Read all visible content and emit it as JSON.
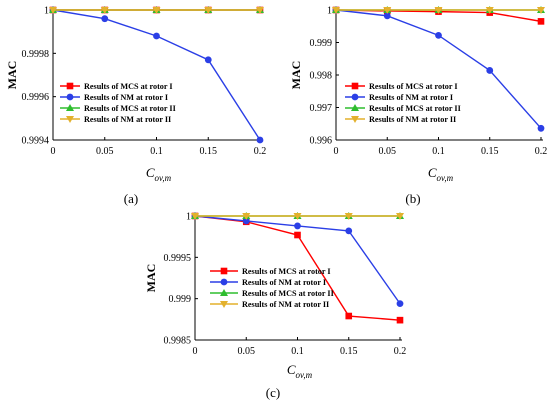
{
  "chart_data": [
    {
      "panel": "(a)",
      "type": "line",
      "ylabel": "MAC",
      "xlabel_main": "C",
      "xlabel_sub": "ov,m",
      "x": [
        0,
        0.05,
        0.1,
        0.15,
        0.2
      ],
      "x_ticks": [
        "0",
        "0.05",
        "0.1",
        "0.15",
        "0.2"
      ],
      "ylim": [
        0.9994,
        1.0
      ],
      "y_ticks": [
        {
          "value": 0.9994,
          "label": "0.9994"
        },
        {
          "value": 0.9996,
          "label": "0.9996"
        },
        {
          "value": 0.9998,
          "label": "0.9998"
        },
        {
          "value": 1.0,
          "label": "1"
        }
      ],
      "series": [
        {
          "name": "Results of MCS at rotor I",
          "color": "#ff0000",
          "marker": "square",
          "values": [
            1.0,
            1.0,
            1.0,
            1.0,
            1.0
          ]
        },
        {
          "name": "Results of NM at rotor I",
          "color": "#2b3fe6",
          "marker": "circle",
          "values": [
            1.0,
            0.99996,
            0.99988,
            0.99977,
            0.9994
          ]
        },
        {
          "name": "Results of MCS at rotor II",
          "color": "#2ebd2e",
          "marker": "triangle-up",
          "values": [
            1.0,
            1.0,
            1.0,
            1.0,
            1.0
          ]
        },
        {
          "name": "Results of NM at rotor II",
          "color": "#e3b12c",
          "marker": "triangle-down",
          "values": [
            1.0,
            1.0,
            1.0,
            1.0,
            1.0
          ]
        }
      ],
      "legend": "center-left"
    },
    {
      "panel": "(b)",
      "type": "line",
      "ylabel": "MAC",
      "xlabel_main": "C",
      "xlabel_sub": "ov,m",
      "x": [
        0,
        0.05,
        0.1,
        0.15,
        0.2
      ],
      "x_ticks": [
        "0",
        "0.05",
        "0.1",
        "0.15",
        "0.2"
      ],
      "ylim": [
        0.996,
        1.0
      ],
      "y_ticks": [
        {
          "value": 0.996,
          "label": "0.996"
        },
        {
          "value": 0.997,
          "label": "0.997"
        },
        {
          "value": 0.998,
          "label": "0.998"
        },
        {
          "value": 0.999,
          "label": "0.999"
        },
        {
          "value": 1.0,
          "label": "1"
        }
      ],
      "series": [
        {
          "name": "Results of MCS at rotor I",
          "color": "#ff0000",
          "marker": "square",
          "values": [
            1.0,
            0.99997,
            0.99995,
            0.99992,
            0.99965
          ]
        },
        {
          "name": "Results of NM at rotor I",
          "color": "#2b3fe6",
          "marker": "circle",
          "values": [
            1.0,
            0.99982,
            0.99922,
            0.99814,
            0.99636
          ]
        },
        {
          "name": "Results of MCS at rotor II",
          "color": "#2ebd2e",
          "marker": "triangle-up",
          "values": [
            1.0,
            1.0,
            1.0,
            1.0,
            1.0
          ]
        },
        {
          "name": "Results of NM at rotor II",
          "color": "#e3b12c",
          "marker": "triangle-down",
          "values": [
            1.0,
            1.0,
            1.0,
            1.0,
            1.0
          ]
        }
      ],
      "legend": "center-left"
    },
    {
      "panel": "(c)",
      "type": "line",
      "ylabel": "MAC",
      "xlabel_main": "C",
      "xlabel_sub": "ov,m",
      "x": [
        0,
        0.05,
        0.1,
        0.15,
        0.2
      ],
      "x_ticks": [
        "0",
        "0.05",
        "0.1",
        "0.15",
        "0.2"
      ],
      "ylim": [
        0.9985,
        1.0
      ],
      "y_ticks": [
        {
          "value": 0.9985,
          "label": "0.9985"
        },
        {
          "value": 0.999,
          "label": "0.999"
        },
        {
          "value": 0.9995,
          "label": "0.9995"
        },
        {
          "value": 1.0,
          "label": "1"
        }
      ],
      "series": [
        {
          "name": "Results of MCS at rotor I",
          "color": "#ff0000",
          "marker": "square",
          "values": [
            1.0,
            0.99993,
            0.99977,
            0.99879,
            0.99874
          ]
        },
        {
          "name": "Results of NM at rotor I",
          "color": "#2b3fe6",
          "marker": "circle",
          "values": [
            1.0,
            0.99994,
            0.99988,
            0.99982,
            0.99894
          ]
        },
        {
          "name": "Results of MCS at rotor II",
          "color": "#2ebd2e",
          "marker": "triangle-up",
          "values": [
            1.0,
            1.0,
            1.0,
            1.0,
            1.0
          ]
        },
        {
          "name": "Results of NM at rotor II",
          "color": "#e3b12c",
          "marker": "triangle-down",
          "values": [
            1.0,
            1.0,
            1.0,
            1.0,
            1.0
          ]
        }
      ],
      "legend": "center-left"
    }
  ]
}
